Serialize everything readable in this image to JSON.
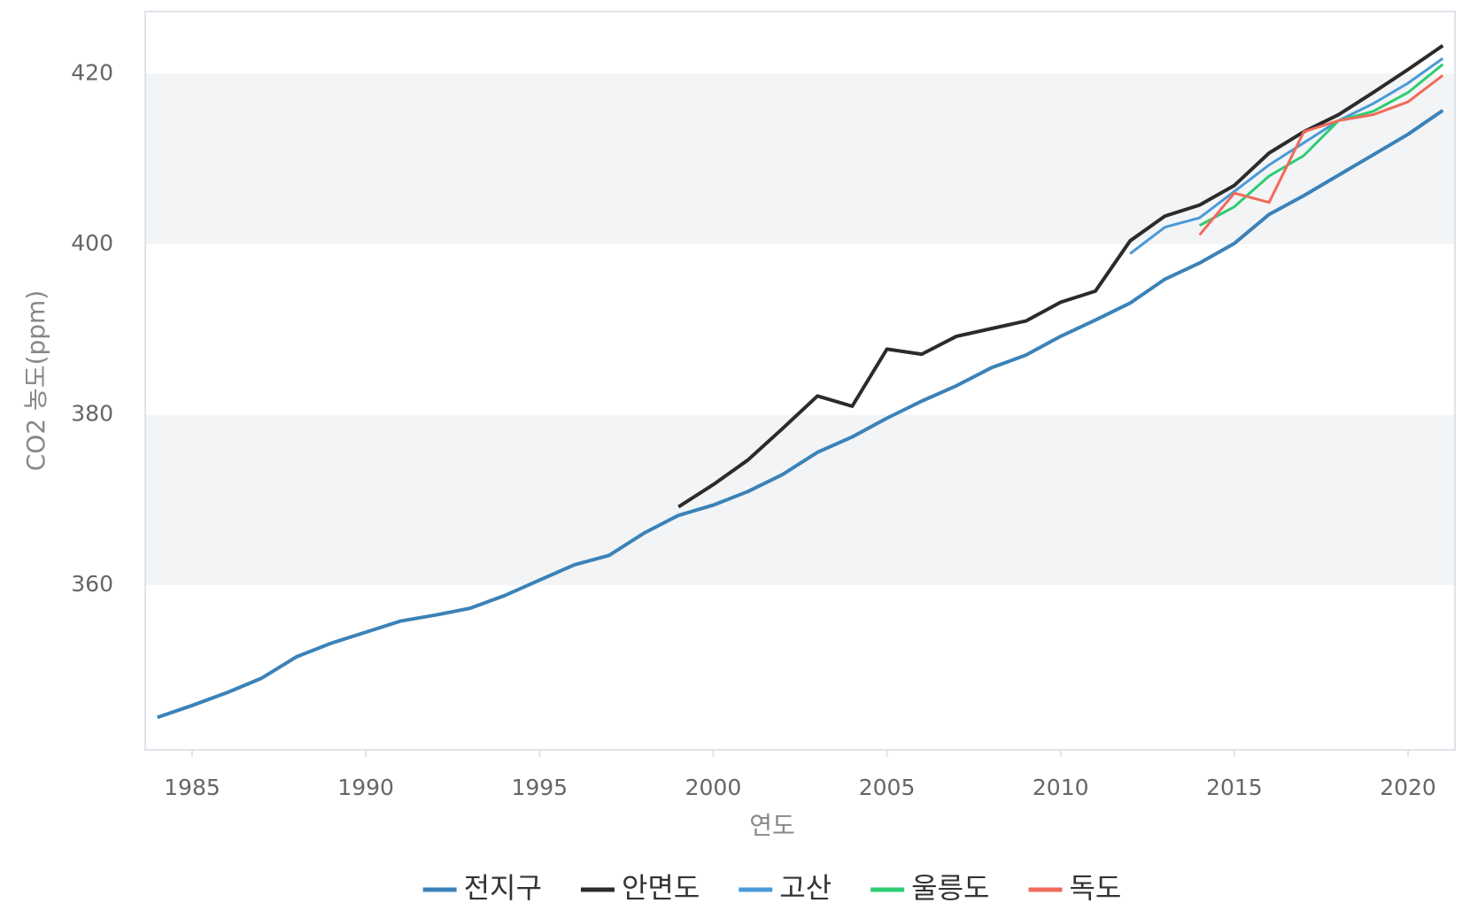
{
  "chart_data": {
    "type": "line",
    "y_label": "CO2 농도(ppm)",
    "x_label": "연도",
    "x": [
      1984,
      1985,
      1986,
      1987,
      1988,
      1989,
      1990,
      1991,
      1992,
      1993,
      1994,
      1995,
      1996,
      1997,
      1998,
      1999,
      2000,
      2001,
      2002,
      2003,
      2004,
      2005,
      2006,
      2007,
      2008,
      2009,
      2010,
      2011,
      2012,
      2013,
      2014,
      2015,
      2016,
      2017,
      2018,
      2019,
      2020,
      2021
    ],
    "series": [
      {
        "name": "전지구",
        "color": "#3b82b8",
        "values": [
          344.5,
          345.9,
          347.4,
          349.1,
          351.6,
          353.2,
          354.5,
          355.8,
          356.5,
          357.3,
          358.8,
          360.6,
          362.4,
          363.5,
          366.1,
          368.2,
          369.4,
          371.0,
          373.0,
          375.6,
          377.4,
          379.6,
          381.6,
          383.4,
          385.5,
          387.0,
          389.2,
          391.1,
          393.1,
          395.9,
          397.8,
          400.1,
          403.5,
          405.7,
          408.1,
          410.5,
          412.9,
          415.7
        ]
      },
      {
        "name": "안면도",
        "color": "#2b2b2b",
        "values": [
          null,
          null,
          null,
          null,
          null,
          null,
          null,
          null,
          null,
          null,
          null,
          null,
          null,
          null,
          null,
          369.2,
          371.8,
          374.7,
          378.4,
          382.2,
          381.0,
          387.7,
          387.1,
          389.2,
          390.1,
          391.0,
          393.2,
          394.5,
          400.4,
          403.3,
          404.6,
          406.9,
          410.7,
          413.2,
          415.2,
          417.8,
          420.5,
          423.3
        ]
      },
      {
        "name": "고산",
        "color": "#4a9ad8",
        "values": [
          null,
          null,
          null,
          null,
          null,
          null,
          null,
          null,
          null,
          null,
          null,
          null,
          null,
          null,
          null,
          null,
          null,
          null,
          null,
          null,
          null,
          null,
          null,
          null,
          null,
          null,
          null,
          null,
          398.9,
          402.0,
          403.1,
          406.2,
          409.3,
          411.9,
          414.5,
          416.5,
          418.9,
          421.8
        ]
      },
      {
        "name": "울릉도",
        "color": "#2ecc71",
        "values": [
          null,
          null,
          null,
          null,
          null,
          null,
          null,
          null,
          null,
          null,
          null,
          null,
          null,
          null,
          null,
          null,
          null,
          null,
          null,
          null,
          null,
          null,
          null,
          null,
          null,
          null,
          null,
          null,
          null,
          null,
          402.2,
          404.4,
          408.0,
          410.4,
          414.5,
          415.6,
          417.8,
          421.1
        ]
      },
      {
        "name": "독도",
        "color": "#f06b5a",
        "values": [
          null,
          null,
          null,
          null,
          null,
          null,
          null,
          null,
          null,
          null,
          null,
          null,
          null,
          null,
          null,
          null,
          null,
          null,
          null,
          null,
          null,
          null,
          null,
          null,
          null,
          null,
          null,
          null,
          null,
          null,
          401.1,
          406.0,
          404.9,
          413.2,
          414.5,
          415.2,
          416.7,
          419.8
        ]
      }
    ],
    "xlim": [
      1983.65,
      2021.35
    ],
    "xticks": [
      1985,
      1990,
      1995,
      2000,
      2005,
      2010,
      2015,
      2020
    ],
    "ylim": [
      340.7,
      427.3
    ],
    "yticks": [
      360,
      380,
      400,
      420
    ],
    "legend": "bottom"
  }
}
